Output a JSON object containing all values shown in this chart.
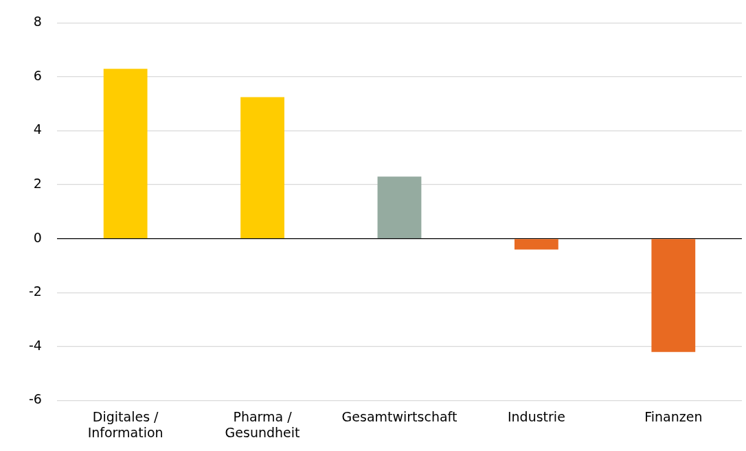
{
  "chart_data": {
    "type": "bar",
    "categories": [
      "Digitales / Information",
      "Pharma / Gesundheit",
      "Gesamtwirtschaft",
      "Industrie",
      "Finanzen"
    ],
    "values": [
      6.3,
      5.25,
      2.3,
      -0.4,
      -4.2
    ],
    "colors": [
      "#ffcc00",
      "#ffcc00",
      "#95aba0",
      "#e86a22",
      "#e86a22"
    ],
    "ylim": [
      -6,
      8
    ],
    "yticks": [
      -6,
      -4,
      -2,
      0,
      2,
      4,
      6,
      8
    ],
    "grid": "y",
    "legend": false
  }
}
